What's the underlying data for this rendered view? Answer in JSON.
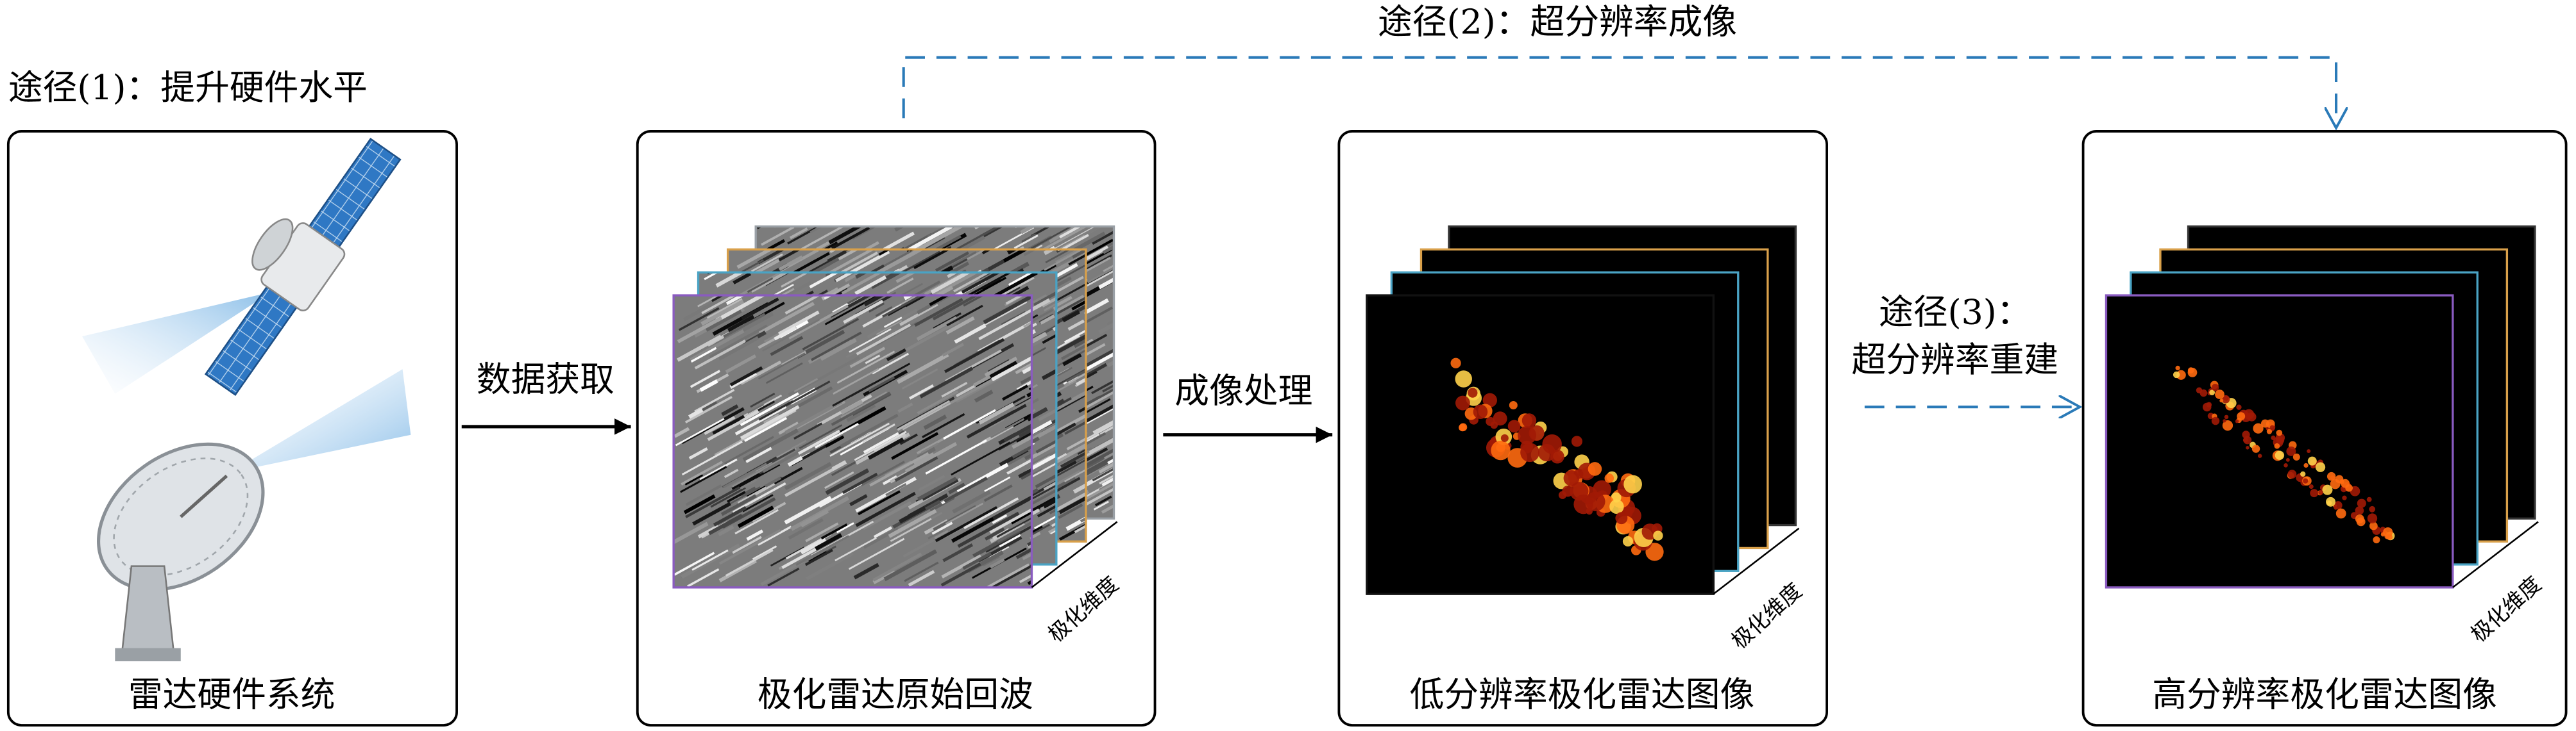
{
  "paths": {
    "path1": "途径(1)：提升硬件水平",
    "path2": "途径(2)：超分辨率成像",
    "path3": [
      "途径(3)：",
      "超分辨率重建"
    ]
  },
  "steps": [
    "数据获取",
    "成像处理"
  ],
  "boxes": [
    {
      "label": "雷达硬件系统"
    },
    {
      "label": "极化雷达原始回波",
      "dimension": "极化维度"
    },
    {
      "label": "低分辨率极化雷达图像",
      "dimension": "极化维度"
    },
    {
      "label": "高分辨率极化雷达图像",
      "dimension": "极化维度"
    }
  ]
}
